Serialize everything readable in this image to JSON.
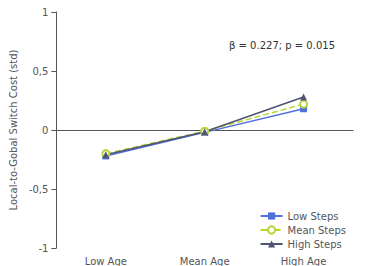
{
  "chart_data": {
    "type": "line",
    "ylabel": "Local-to-Gobal Switch Cost (std)",
    "annotation": "β = 0.227; p = 0.015",
    "categories": [
      "Low Age",
      "Mean Age",
      "High Age"
    ],
    "series": [
      {
        "name": "Low Steps",
        "values": [
          -0.22,
          -0.02,
          0.18
        ],
        "marker": "square",
        "line_style": "solid"
      },
      {
        "name": "Mean Steps",
        "values": [
          -0.2,
          -0.01,
          0.22
        ],
        "marker": "open_circle",
        "line_style": "dashed"
      },
      {
        "name": "High Steps",
        "values": [
          -0.21,
          -0.015,
          0.28
        ],
        "marker": "triangle",
        "line_style": "solid"
      }
    ],
    "ylim": [
      -1,
      1
    ],
    "yticks": [
      -1,
      {
        "value": -0.5,
        "label": "-0,5"
      },
      0,
      {
        "value": 0.5,
        "label": "0,5"
      },
      1
    ],
    "grid": false,
    "legend": "lower right"
  }
}
